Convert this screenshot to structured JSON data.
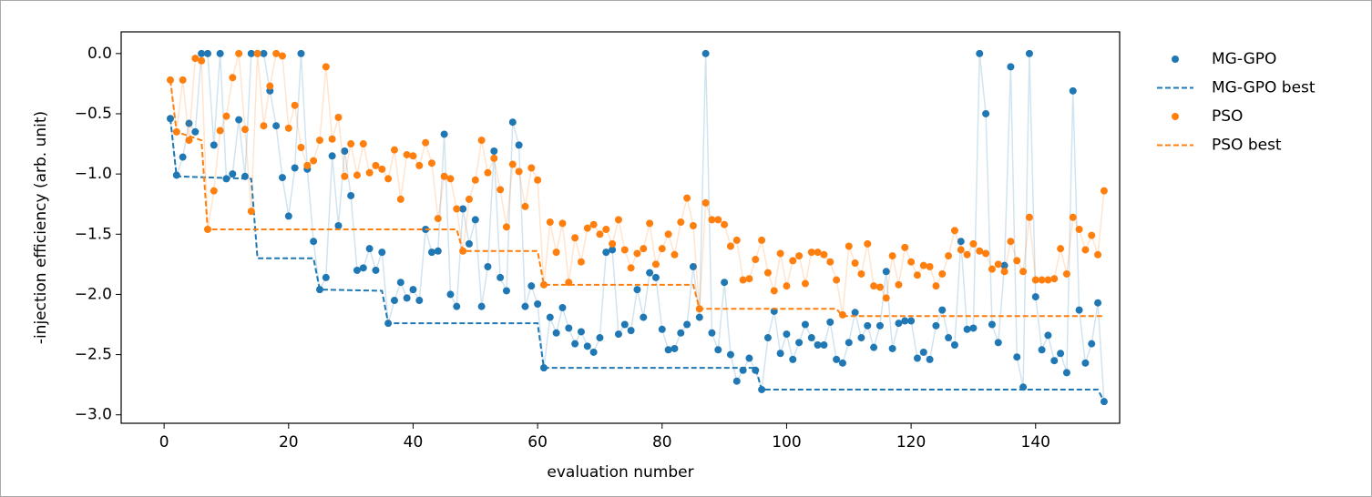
{
  "chart_data": {
    "type": "line",
    "xlabel": "evaluation number",
    "ylabel": "-injection efficiency (arb. unit)",
    "xlim": [
      -6.9,
      153.5
    ],
    "ylim": [
      -3.07,
      0.18
    ],
    "xticks": [
      0,
      20,
      40,
      60,
      80,
      100,
      120,
      140
    ],
    "yticks": [
      {
        "value": 0,
        "label": "0.0"
      },
      {
        "value": -0.5,
        "label": "−0.5"
      },
      {
        "value": -1,
        "label": "−1.0"
      },
      {
        "value": -1.5,
        "label": "−1.5"
      },
      {
        "value": -2,
        "label": "−2.0"
      },
      {
        "value": -2.5,
        "label": "−2.5"
      },
      {
        "value": -3,
        "label": "−3.0"
      }
    ],
    "legend": "outside-right",
    "x": [
      1,
      2,
      3,
      4,
      5,
      6,
      7,
      8,
      9,
      10,
      11,
      12,
      13,
      14,
      15,
      16,
      17,
      18,
      19,
      20,
      21,
      22,
      23,
      24,
      25,
      26,
      27,
      28,
      29,
      30,
      31,
      32,
      33,
      34,
      35,
      36,
      37,
      38,
      39,
      40,
      41,
      42,
      43,
      44,
      45,
      46,
      47,
      48,
      49,
      50,
      51,
      52,
      53,
      54,
      55,
      56,
      57,
      58,
      59,
      60,
      61,
      62,
      63,
      64,
      65,
      66,
      67,
      68,
      69,
      70,
      71,
      72,
      73,
      74,
      75,
      76,
      77,
      78,
      79,
      80,
      81,
      82,
      83,
      84,
      85,
      86,
      87,
      88,
      89,
      90,
      91,
      92,
      93,
      94,
      95,
      96,
      97,
      98,
      99,
      100,
      101,
      102,
      103,
      104,
      105,
      106,
      107,
      108,
      109,
      110,
      111,
      112,
      113,
      114,
      115,
      116,
      117,
      118,
      119,
      120,
      121,
      122,
      123,
      124,
      125,
      126,
      127,
      128,
      129,
      130,
      131,
      132,
      133,
      134,
      135,
      136,
      137,
      138,
      139,
      140,
      141,
      142,
      143,
      144,
      145,
      146,
      147,
      148,
      149,
      150,
      151
    ],
    "series": [
      {
        "name": "MG-GPO",
        "color": "#1f77b4",
        "style": "scatter",
        "values": [
          -0.54,
          -1.01,
          -0.86,
          -0.58,
          -0.65,
          0,
          0,
          -0.76,
          0,
          -1.04,
          -1.0,
          -0.55,
          -1.02,
          0,
          0,
          0,
          -0.31,
          -0.6,
          -1.03,
          -1.35,
          -0.95,
          0,
          -0.96,
          -1.56,
          -1.96,
          -1.86,
          -0.85,
          -1.43,
          -0.81,
          -1.18,
          -1.8,
          -1.78,
          -1.62,
          -1.8,
          -1.65,
          -2.24,
          -2.05,
          -1.9,
          -2.03,
          -1.96,
          -2.05,
          -1.46,
          -1.65,
          -1.64,
          -0.67,
          -2.0,
          -2.1,
          -1.29,
          -1.58,
          -1.38,
          -2.1,
          -1.77,
          -0.81,
          -1.86,
          -1.97,
          -0.57,
          -0.76,
          -2.1,
          -1.93,
          -2.08,
          -2.61,
          -2.19,
          -2.32,
          -2.11,
          -2.28,
          -2.41,
          -2.31,
          -2.43,
          -2.48,
          -2.36,
          -1.65,
          -1.63,
          -2.33,
          -2.25,
          -2.3,
          -1.96,
          -2.19,
          -1.82,
          -1.86,
          -2.29,
          -2.46,
          -2.45,
          -2.32,
          -2.25,
          -1.77,
          -2.19,
          0,
          -2.32,
          -2.46,
          -1.9,
          -2.5,
          -2.72,
          -2.63,
          -2.53,
          -2.63,
          -2.79,
          -2.36,
          -2.14,
          -2.49,
          -2.33,
          -2.54,
          -2.4,
          -2.25,
          -2.36,
          -2.42,
          -2.42,
          -2.23,
          -2.54,
          -2.57,
          -2.4,
          -2.15,
          -2.36,
          -2.26,
          -2.44,
          -2.26,
          -1.81,
          -2.45,
          -2.24,
          -2.22,
          -2.22,
          -2.53,
          -2.48,
          -2.54,
          -2.26,
          -2.13,
          -2.36,
          -2.42,
          -1.56,
          -2.29,
          -2.28,
          0,
          -0.5,
          -2.25,
          -2.4,
          -1.76,
          -0.11,
          -2.52,
          -2.77,
          0,
          -2.02,
          -2.46,
          -2.34,
          -2.55,
          -2.49,
          -2.65,
          -0.31,
          -2.13,
          -2.57,
          -2.41,
          -2.07,
          -2.89
        ]
      },
      {
        "name": "MG-GPO best",
        "color": "#1f77b4",
        "style": "dashed",
        "x": [
          1,
          2,
          14,
          15,
          24,
          25,
          35,
          36,
          60,
          61,
          95,
          96,
          150,
          151
        ],
        "values": [
          -0.54,
          -1.02,
          -1.04,
          -1.7,
          -1.7,
          -1.96,
          -1.97,
          -2.24,
          -2.24,
          -2.61,
          -2.61,
          -2.79,
          -2.79,
          -2.89
        ]
      },
      {
        "name": "PSO",
        "color": "#ff7f0e",
        "style": "scatter",
        "values": [
          -0.22,
          -0.65,
          -0.22,
          -0.72,
          -0.04,
          -0.06,
          -1.46,
          -1.14,
          -0.64,
          -0.52,
          -0.2,
          0,
          -0.63,
          -1.31,
          0,
          -0.6,
          -0.27,
          0,
          -0.02,
          -0.62,
          -0.43,
          -0.78,
          -0.93,
          -0.89,
          -0.72,
          -0.11,
          -0.71,
          -0.53,
          -1.02,
          -0.75,
          -1.01,
          -0.75,
          -0.99,
          -0.93,
          -0.96,
          -1.04,
          -0.8,
          -1.21,
          -0.84,
          -0.85,
          -0.93,
          -0.74,
          -0.91,
          -1.37,
          -1.02,
          -1.04,
          -1.29,
          -1.64,
          -1.21,
          -1.05,
          -0.72,
          -0.99,
          -0.87,
          -1.13,
          -1.44,
          -0.92,
          -0.98,
          -1.27,
          -0.95,
          -1.05,
          -1.92,
          -1.4,
          -1.65,
          -1.41,
          -1.9,
          -1.53,
          -1.73,
          -1.45,
          -1.42,
          -1.5,
          -1.46,
          -1.58,
          -1.38,
          -1.63,
          -1.78,
          -1.66,
          -1.62,
          -1.41,
          -1.75,
          -1.62,
          -1.5,
          -1.67,
          -1.4,
          -1.2,
          -1.43,
          -2.12,
          -1.24,
          -1.38,
          -1.38,
          -1.42,
          -1.6,
          -1.55,
          -1.88,
          -1.87,
          -1.71,
          -1.55,
          -1.82,
          -1.97,
          -1.66,
          -1.93,
          -1.72,
          -1.68,
          -1.91,
          -1.65,
          -1.65,
          -1.67,
          -1.73,
          -1.88,
          -2.17,
          -1.6,
          -1.74,
          -1.83,
          -1.58,
          -1.93,
          -1.94,
          -2.03,
          -1.68,
          -1.92,
          -1.61,
          -1.73,
          -1.84,
          -1.76,
          -1.77,
          -1.93,
          -1.83,
          -1.68,
          -1.47,
          -1.63,
          -1.67,
          -1.58,
          -1.64,
          -1.66,
          -1.79,
          -1.75,
          -1.81,
          -1.56,
          -1.72,
          -1.81,
          -1.36,
          -1.88,
          -1.88,
          -1.88,
          -1.87,
          -1.62,
          -1.83,
          -1.36,
          -1.46,
          -1.63,
          -1.51,
          -1.67,
          -1.14
        ]
      },
      {
        "name": "PSO best",
        "color": "#ff7f0e",
        "style": "dashed",
        "x": [
          1,
          2,
          6,
          7,
          47,
          48,
          60,
          61,
          85,
          86,
          108,
          109,
          151
        ],
        "values": [
          -0.22,
          -0.65,
          -0.72,
          -1.46,
          -1.46,
          -1.64,
          -1.64,
          -1.92,
          -1.92,
          -2.12,
          -2.12,
          -2.18,
          -2.18
        ]
      }
    ]
  }
}
